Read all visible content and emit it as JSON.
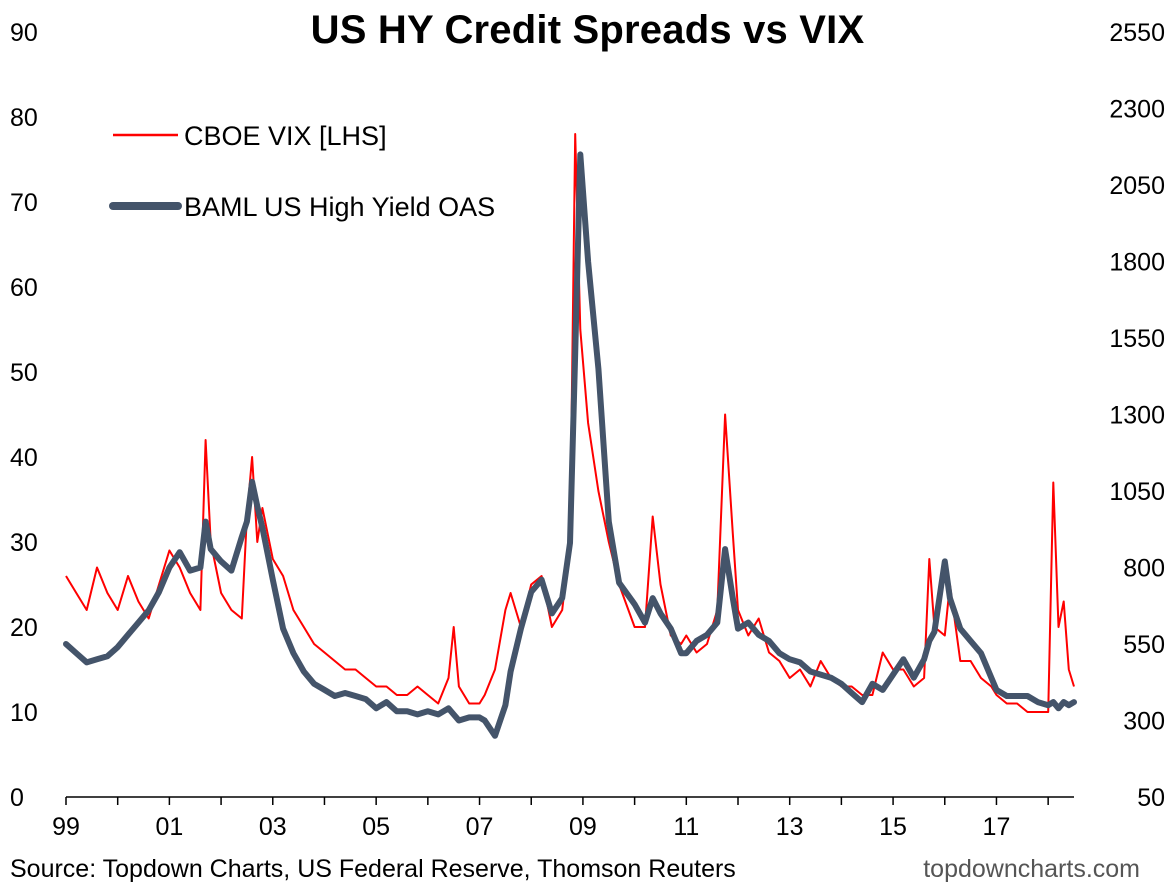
{
  "chart_data": {
    "type": "line",
    "title": "US HY Credit Spreads vs VIX",
    "x_tick_labels": [
      "99",
      "01",
      "03",
      "05",
      "07",
      "09",
      "11",
      "13",
      "15",
      "17"
    ],
    "x_tick_years": [
      1999,
      2001,
      2003,
      2005,
      2007,
      2009,
      2011,
      2013,
      2015,
      2017
    ],
    "x_range": [
      1999.0,
      2018.5
    ],
    "y_left": {
      "range": [
        0,
        90
      ],
      "ticks": [
        0,
        10,
        20,
        30,
        40,
        50,
        60,
        70,
        80,
        90
      ]
    },
    "y_right": {
      "range": [
        50,
        2550
      ],
      "ticks": [
        50,
        300,
        550,
        800,
        1050,
        1300,
        1550,
        1800,
        2050,
        2300,
        2550
      ]
    },
    "grid": false,
    "legend_position": "top-left",
    "colors": {
      "vix": "#ff0000",
      "oas": "#44546a"
    },
    "series": [
      {
        "name": "CBOE VIX [LHS]",
        "axis": "left",
        "x": [
          1999.0,
          1999.2,
          1999.4,
          1999.6,
          1999.8,
          2000.0,
          2000.2,
          2000.4,
          2000.6,
          2000.8,
          2001.0,
          2001.2,
          2001.4,
          2001.6,
          2001.7,
          2001.8,
          2002.0,
          2002.2,
          2002.4,
          2002.5,
          2002.6,
          2002.7,
          2002.8,
          2003.0,
          2003.2,
          2003.4,
          2003.6,
          2003.8,
          2004.0,
          2004.2,
          2004.4,
          2004.6,
          2004.8,
          2005.0,
          2005.2,
          2005.4,
          2005.6,
          2005.8,
          2006.0,
          2006.2,
          2006.4,
          2006.5,
          2006.6,
          2006.8,
          2007.0,
          2007.1,
          2007.3,
          2007.5,
          2007.6,
          2007.8,
          2008.0,
          2008.2,
          2008.4,
          2008.6,
          2008.75,
          2008.85,
          2008.95,
          2009.1,
          2009.3,
          2009.5,
          2009.7,
          2010.0,
          2010.2,
          2010.35,
          2010.5,
          2010.7,
          2010.9,
          2011.0,
          2011.2,
          2011.4,
          2011.6,
          2011.75,
          2011.9,
          2012.0,
          2012.2,
          2012.4,
          2012.6,
          2012.8,
          2013.0,
          2013.2,
          2013.4,
          2013.6,
          2013.8,
          2014.0,
          2014.2,
          2014.4,
          2014.6,
          2014.8,
          2015.0,
          2015.2,
          2015.4,
          2015.6,
          2015.7,
          2015.8,
          2016.0,
          2016.1,
          2016.3,
          2016.5,
          2016.7,
          2016.9,
          2017.0,
          2017.2,
          2017.4,
          2017.6,
          2017.8,
          2018.0,
          2018.1,
          2018.2,
          2018.3,
          2018.4,
          2018.5
        ],
        "values": [
          26,
          24,
          22,
          27,
          24,
          22,
          26,
          23,
          21,
          25,
          29,
          27,
          24,
          22,
          42,
          30,
          24,
          22,
          21,
          33,
          40,
          30,
          34,
          28,
          26,
          22,
          20,
          18,
          17,
          16,
          15,
          15,
          14,
          13,
          13,
          12,
          12,
          13,
          12,
          11,
          14,
          20,
          13,
          11,
          11,
          12,
          15,
          22,
          24,
          20,
          25,
          26,
          20,
          22,
          30,
          78,
          55,
          44,
          36,
          30,
          25,
          20,
          20,
          33,
          25,
          19,
          18,
          19,
          17,
          18,
          22,
          45,
          31,
          22,
          19,
          21,
          17,
          16,
          14,
          15,
          13,
          16,
          14,
          13,
          13,
          12,
          12,
          17,
          15,
          15,
          13,
          14,
          28,
          20,
          19,
          25,
          16,
          16,
          14,
          13,
          12,
          11,
          11,
          10,
          10,
          10,
          37,
          20,
          23,
          15,
          13
        ]
      },
      {
        "name": "BAML US High Yield OAS",
        "axis": "right",
        "x": [
          1999.0,
          1999.2,
          1999.4,
          1999.6,
          1999.8,
          2000.0,
          2000.2,
          2000.4,
          2000.6,
          2000.8,
          2001.0,
          2001.2,
          2001.4,
          2001.6,
          2001.7,
          2001.8,
          2002.0,
          2002.2,
          2002.4,
          2002.5,
          2002.6,
          2002.7,
          2002.8,
          2003.0,
          2003.2,
          2003.4,
          2003.6,
          2003.8,
          2004.0,
          2004.2,
          2004.4,
          2004.6,
          2004.8,
          2005.0,
          2005.2,
          2005.4,
          2005.6,
          2005.8,
          2006.0,
          2006.2,
          2006.4,
          2006.5,
          2006.6,
          2006.8,
          2007.0,
          2007.1,
          2007.3,
          2007.5,
          2007.6,
          2007.8,
          2008.0,
          2008.2,
          2008.4,
          2008.6,
          2008.75,
          2008.85,
          2008.95,
          2009.1,
          2009.3,
          2009.5,
          2009.7,
          2010.0,
          2010.2,
          2010.35,
          2010.5,
          2010.7,
          2010.9,
          2011.0,
          2011.2,
          2011.4,
          2011.6,
          2011.75,
          2011.9,
          2012.0,
          2012.2,
          2012.4,
          2012.6,
          2012.8,
          2013.0,
          2013.2,
          2013.4,
          2013.6,
          2013.8,
          2014.0,
          2014.2,
          2014.4,
          2014.6,
          2014.8,
          2015.0,
          2015.2,
          2015.4,
          2015.6,
          2015.7,
          2015.8,
          2016.0,
          2016.1,
          2016.3,
          2016.5,
          2016.7,
          2016.9,
          2017.0,
          2017.2,
          2017.4,
          2017.6,
          2017.8,
          2018.0,
          2018.1,
          2018.2,
          2018.3,
          2018.4,
          2018.5
        ],
        "values": [
          550,
          520,
          490,
          500,
          510,
          540,
          580,
          620,
          660,
          720,
          800,
          850,
          790,
          800,
          950,
          860,
          820,
          790,
          900,
          950,
          1080,
          1000,
          930,
          760,
          600,
          520,
          460,
          420,
          400,
          380,
          390,
          380,
          370,
          340,
          360,
          330,
          330,
          320,
          330,
          320,
          340,
          320,
          300,
          310,
          310,
          300,
          250,
          350,
          460,
          600,
          720,
          760,
          650,
          700,
          880,
          1500,
          2150,
          1800,
          1450,
          950,
          750,
          680,
          620,
          700,
          650,
          600,
          520,
          520,
          560,
          580,
          620,
          860,
          700,
          600,
          620,
          580,
          560,
          520,
          500,
          490,
          460,
          450,
          440,
          420,
          390,
          360,
          420,
          400,
          450,
          500,
          440,
          500,
          560,
          590,
          820,
          700,
          600,
          560,
          520,
          440,
          400,
          380,
          380,
          380,
          360,
          350,
          360,
          340,
          360,
          350,
          360
        ]
      }
    ]
  },
  "legend": {
    "vix_label": "CBOE VIX [LHS]",
    "oas_label": "BAML US High Yield OAS"
  },
  "footer": {
    "source": "Source: Topdown Charts, US Federal Reserve, Thomson Reuters",
    "brand": "topdowncharts.com"
  }
}
